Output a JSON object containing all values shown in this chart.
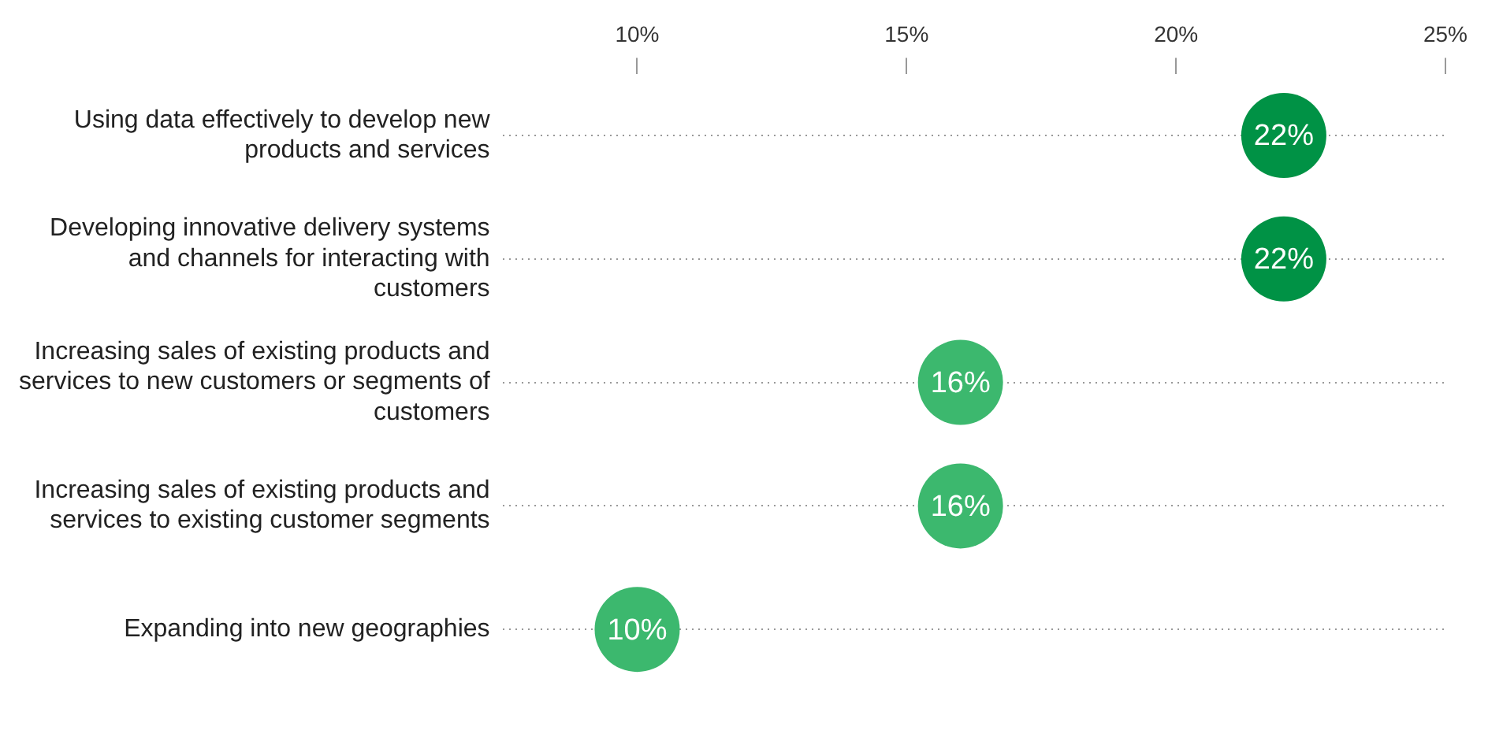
{
  "chart_data": {
    "type": "scatter",
    "orientation": "horizontal",
    "categories": [
      "Using data effectively to develop new products and services",
      "Developing innovative delivery systems and channels for interacting with customers",
      "Increasing sales of existing products and services to new customers or segments of customers",
      "Increasing sales of existing products and services to existing customer segments",
      "Expanding into new geographies"
    ],
    "values": [
      22,
      22,
      16,
      16,
      10
    ],
    "value_labels": [
      "22%",
      "22%",
      "16%",
      "16%",
      "10%"
    ],
    "colors": [
      "#009245",
      "#009245",
      "#3cb86e",
      "#3cb86e",
      "#3cb86e"
    ],
    "xlim": [
      7.5,
      25
    ],
    "xticks": [
      {
        "value": 10,
        "label": "10%"
      },
      {
        "value": 15,
        "label": "15%"
      },
      {
        "value": 20,
        "label": "20%"
      },
      {
        "value": 25,
        "label": "25%"
      }
    ],
    "grid": "y",
    "marker": "circle",
    "legend": false
  }
}
